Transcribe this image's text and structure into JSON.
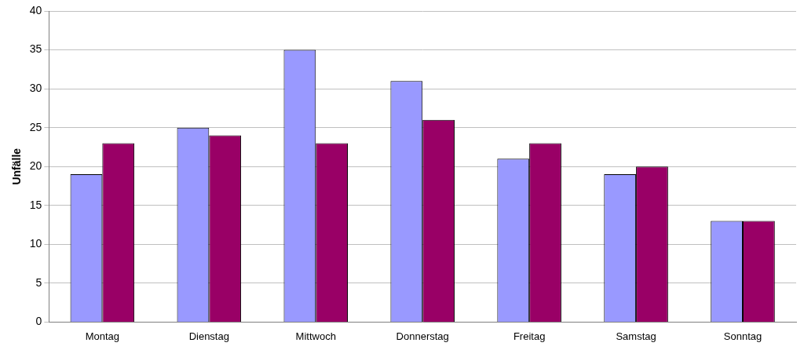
{
  "chart_data": {
    "type": "bar",
    "y_label": "Unfälle",
    "categories": [
      "Montag",
      "Dienstag",
      "Mittwoch",
      "Donnerstag",
      "Freitag",
      "Samstag",
      "Sonntag"
    ],
    "series": [
      {
        "color": "#9999ff",
        "values": [
          19,
          25,
          35,
          31,
          21,
          19,
          13
        ]
      },
      {
        "color": "#990066",
        "values": [
          23,
          24,
          23,
          26,
          23,
          20,
          13
        ]
      }
    ],
    "ylim": [
      0,
      40
    ],
    "yticks": [
      0,
      5,
      10,
      15,
      20,
      25,
      30,
      35,
      40
    ],
    "grid": true
  }
}
